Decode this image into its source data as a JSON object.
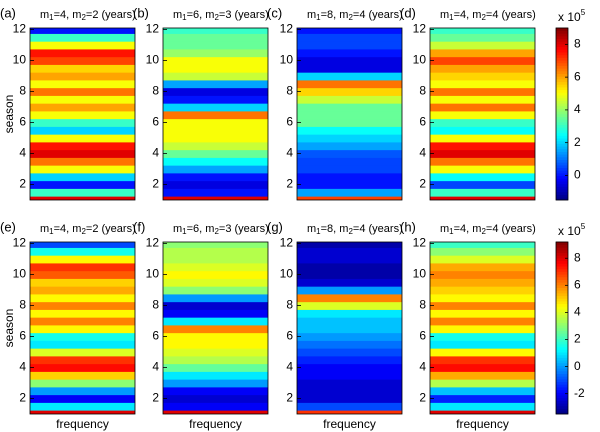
{
  "chart_data": [
    {
      "type": "heatmap",
      "panel_label": "(a)",
      "title_parts": [
        "m",
        "1",
        "=4, ",
        "m",
        "2",
        "=2 (years)"
      ],
      "y_label": "season",
      "colormap": "jet",
      "clim": [
        -1.5,
        9
      ],
      "y": [
        1,
        1.5,
        2,
        2.5,
        3,
        3.5,
        4,
        4.5,
        5,
        5.5,
        6,
        6.5,
        7,
        7.5,
        8,
        8.5,
        9,
        9.5,
        10,
        10.5,
        11,
        11.5,
        12
      ],
      "values": [
        8,
        3,
        0,
        2,
        5,
        6.5,
        8,
        7.5,
        5,
        2,
        3,
        5,
        6,
        5,
        6.5,
        5,
        6,
        5.5,
        7,
        7.5,
        5,
        3,
        0
      ],
      "ylim": [
        1,
        12.1
      ],
      "yticks": [
        2,
        4,
        6,
        8,
        10,
        12
      ]
    },
    {
      "type": "heatmap",
      "panel_label": "(b)",
      "title_parts": [
        "m",
        "1",
        "=6, ",
        "m",
        "2",
        "=3 (years)"
      ],
      "colormap": "jet",
      "clim": [
        -1.5,
        9
      ],
      "y": [
        1,
        1.5,
        2,
        2.5,
        3,
        3.5,
        4,
        4.5,
        5,
        5.5,
        6,
        6.5,
        7,
        7.5,
        8,
        8.5,
        9,
        9.5,
        10,
        10.5,
        11,
        11.5,
        12
      ],
      "values": [
        8,
        0,
        -0.5,
        0,
        1.5,
        2.5,
        3.5,
        4.5,
        5,
        5,
        5,
        6.5,
        2,
        0,
        -0.5,
        1.5,
        4.5,
        5,
        5,
        4,
        3.5,
        3.5,
        3
      ],
      "ylim": [
        1,
        12.1
      ],
      "yticks": [
        2,
        4,
        6,
        8,
        10,
        12
      ]
    },
    {
      "type": "heatmap",
      "panel_label": "(c)",
      "title_parts": [
        "m",
        "1",
        "=8, ",
        "m",
        "2",
        "=4 (years)"
      ],
      "colormap": "jet",
      "clim": [
        -1.5,
        9
      ],
      "y": [
        1,
        1.5,
        2,
        2.5,
        3,
        3.5,
        4,
        4.5,
        5,
        5.5,
        6,
        6.5,
        7,
        7.5,
        8,
        8.5,
        9,
        9.5,
        10,
        10.5,
        11,
        11.5,
        12
      ],
      "values": [
        7,
        1.5,
        0,
        0,
        0.5,
        0.5,
        0.7,
        1.5,
        2,
        2.5,
        3.5,
        3.5,
        3.5,
        4.5,
        5.5,
        6.5,
        2,
        -0.5,
        -0.5,
        0,
        0.5,
        0.5,
        0
      ],
      "ylim": [
        1,
        12.1
      ],
      "yticks": [
        2,
        4,
        6,
        8,
        10,
        12
      ]
    },
    {
      "type": "heatmap",
      "panel_label": "(d)",
      "title_parts": [
        "m",
        "1",
        "=4, ",
        "m",
        "2",
        "=4 (years)"
      ],
      "colormap": "jet",
      "clim": [
        -1.5,
        9
      ],
      "y": [
        1,
        1.5,
        2,
        2.5,
        3,
        3.5,
        4,
        4.5,
        5,
        5.5,
        6,
        6.5,
        7,
        7.5,
        8,
        8.5,
        9,
        9.5,
        10,
        10.5,
        11,
        11.5,
        12
      ],
      "values": [
        8,
        3,
        0.5,
        2.5,
        5,
        6.5,
        8,
        7.5,
        5,
        2.5,
        3,
        5,
        6.5,
        5,
        6.5,
        5,
        5.5,
        6,
        7,
        6,
        4.5,
        3.5,
        3
      ],
      "ylim": [
        1,
        12.1
      ],
      "yticks": [
        2,
        4,
        6,
        8,
        10,
        12
      ],
      "colorbar": {
        "ticks": [
          0,
          2,
          4,
          6,
          8
        ],
        "exponent_base": "x 10",
        "exponent": 5
      }
    },
    {
      "type": "heatmap",
      "panel_label": "(e)",
      "title_parts": [
        "m",
        "1",
        "=4, ",
        "m",
        "2",
        "=2 (years)"
      ],
      "y_label": "season",
      "x_label": "frequency",
      "colormap": "jet",
      "clim": [
        -3.5,
        9.2
      ],
      "y": [
        1,
        1.5,
        2,
        2.5,
        3,
        3.5,
        4,
        4.5,
        5,
        5.5,
        6,
        6.5,
        7,
        7.5,
        8,
        8.5,
        9,
        9.5,
        10,
        10.5,
        11,
        11.5,
        12
      ],
      "values": [
        8,
        1,
        -2,
        0,
        3,
        5,
        7.5,
        7,
        4,
        1,
        1.5,
        4.5,
        6,
        4.5,
        6,
        4.5,
        5.5,
        5,
        6.5,
        7,
        4.5,
        1.5,
        -1
      ],
      "ylim": [
        1,
        12.1
      ],
      "yticks": [
        2,
        4,
        6,
        8,
        10,
        12
      ]
    },
    {
      "type": "heatmap",
      "panel_label": "(f)",
      "title_parts": [
        "m",
        "1",
        "=6, ",
        "m",
        "2",
        "=3 (years)"
      ],
      "x_label": "frequency",
      "colormap": "jet",
      "clim": [
        -3.5,
        9.2
      ],
      "y": [
        1,
        1.5,
        2,
        2.5,
        3,
        3.5,
        4,
        4.5,
        5,
        5.5,
        6,
        6.5,
        7,
        7.5,
        8,
        8.5,
        9,
        9.5,
        10,
        10.5,
        11,
        11.5,
        12
      ],
      "values": [
        8,
        -2,
        -2.5,
        -2,
        0,
        1,
        2.5,
        3.5,
        4,
        4.5,
        4.5,
        6,
        1,
        -2,
        -2.5,
        0,
        3,
        4,
        4.5,
        4,
        3.5,
        3.5,
        3
      ],
      "ylim": [
        1,
        12.1
      ],
      "yticks": [
        2,
        4,
        6,
        8,
        10,
        12
      ]
    },
    {
      "type": "heatmap",
      "panel_label": "(g)",
      "title_parts": [
        "m",
        "1",
        "=8, ",
        "m",
        "2",
        "=4 (years)"
      ],
      "x_label": "frequency",
      "colormap": "jet",
      "clim": [
        -3.5,
        9.2
      ],
      "y": [
        1,
        1.5,
        2,
        2.5,
        3,
        3.5,
        4,
        4.5,
        5,
        5.5,
        6,
        6.5,
        7,
        7.5,
        8,
        8.5,
        9,
        9.5,
        10,
        10.5,
        11,
        11.5,
        12
      ],
      "values": [
        7,
        -1,
        -2.5,
        -2.5,
        -2.5,
        -2,
        -2,
        -1.5,
        -1,
        -0.5,
        0,
        0.5,
        0.5,
        1,
        4,
        6,
        0,
        -2.5,
        -3,
        -3,
        -2.5,
        -2.5,
        -3
      ],
      "ylim": [
        1,
        12.1
      ],
      "yticks": [
        2,
        4,
        6,
        8,
        10,
        12
      ]
    },
    {
      "type": "heatmap",
      "panel_label": "(h)",
      "title_parts": [
        "m",
        "1",
        "=4, ",
        "m",
        "2",
        "=4 (years)"
      ],
      "x_label": "frequency",
      "colormap": "jet",
      "clim": [
        -3.5,
        9.2
      ],
      "y": [
        1,
        1.5,
        2,
        2.5,
        3,
        3.5,
        4,
        4.5,
        5,
        5.5,
        6,
        6.5,
        7,
        7.5,
        8,
        8.5,
        9,
        9.5,
        10,
        10.5,
        11,
        11.5,
        12
      ],
      "values": [
        8,
        1,
        -1.5,
        0.5,
        3.5,
        5.5,
        7.5,
        7,
        4.5,
        1,
        1.5,
        4.5,
        6,
        4.5,
        6,
        4.5,
        5,
        5.5,
        6,
        5.5,
        4,
        3,
        2
      ],
      "ylim": [
        1,
        12.1
      ],
      "yticks": [
        2,
        4,
        6,
        8,
        10,
        12
      ],
      "colorbar": {
        "ticks": [
          -2,
          0,
          2,
          4,
          6,
          8
        ],
        "exponent_base": "x 10",
        "exponent": 5
      }
    }
  ]
}
